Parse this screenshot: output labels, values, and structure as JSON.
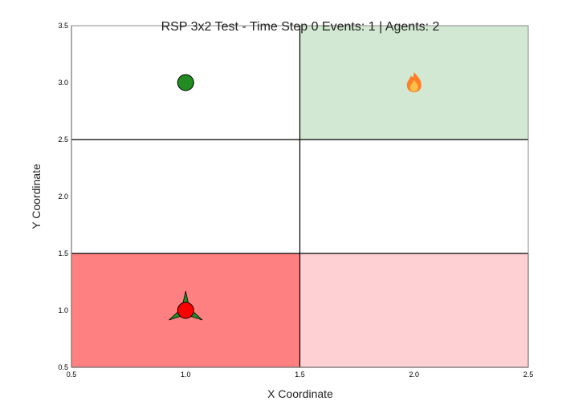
{
  "chart_data": {
    "type": "scatter",
    "title": "RSP 3x2 Test - Time Step 0 Events: 1 | Agents: 2",
    "xlabel": "X Coordinate",
    "ylabel": "Y Coordinate",
    "xlim": [
      0.5,
      2.5
    ],
    "ylim": [
      0.5,
      3.5
    ],
    "grid": true,
    "x_ticks": [
      "0.5",
      "1.0",
      "1.5",
      "2.0",
      "2.5"
    ],
    "x_tick_values": [
      0.5,
      1.0,
      1.5,
      2.0,
      2.5
    ],
    "y_ticks": [
      "0.5",
      "1.0",
      "1.5",
      "2.0",
      "2.5",
      "3.0",
      "3.5"
    ],
    "y_tick_values": [
      0.5,
      1.0,
      1.5,
      2.0,
      2.5,
      3.0,
      3.5
    ],
    "cells": [
      {
        "col": 1,
        "row": 1,
        "color": "#ff8080"
      },
      {
        "col": 2,
        "row": 1,
        "color": "#ffd0d3"
      },
      {
        "col": 1,
        "row": 2,
        "color": "#ffffff"
      },
      {
        "col": 2,
        "row": 2,
        "color": "#ffffff"
      },
      {
        "col": 1,
        "row": 3,
        "color": "#ffffff"
      },
      {
        "col": 2,
        "row": 3,
        "color": "#d2e8d2"
      }
    ],
    "markers": [
      {
        "x": 1.0,
        "y": 3.0,
        "kind": "green-circle",
        "color": "#228b22"
      },
      {
        "x": 1.0,
        "y": 1.0,
        "kind": "tri-star",
        "color": "#228b22"
      },
      {
        "x": 1.0,
        "y": 1.0,
        "kind": "red-circle",
        "color": "#ff0000"
      },
      {
        "x": 2.0,
        "y": 3.0,
        "kind": "fire-icon",
        "color": "#ff7f27"
      }
    ]
  }
}
